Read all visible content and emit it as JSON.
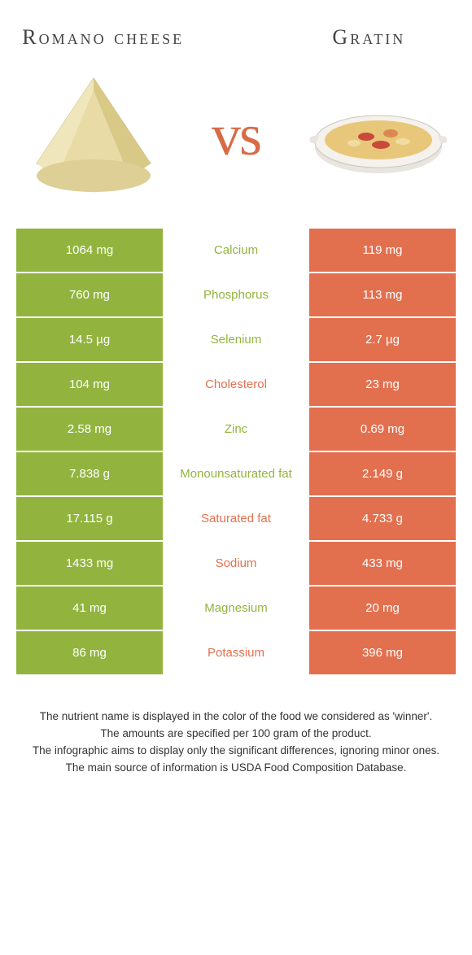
{
  "colors": {
    "green": "#92b43f",
    "orange": "#e2704f",
    "vs": "#d86b47",
    "title": "#444444",
    "footer_text": "#333333",
    "bg": "#ffffff"
  },
  "foods": {
    "left": {
      "name": "Romano cheese"
    },
    "right": {
      "name": "Gratin"
    }
  },
  "vs_label": "vs",
  "rows": [
    {
      "nutrient": "Calcium",
      "left": "1064 mg",
      "right": "119 mg",
      "winner": "left"
    },
    {
      "nutrient": "Phosphorus",
      "left": "760 mg",
      "right": "113 mg",
      "winner": "left"
    },
    {
      "nutrient": "Selenium",
      "left": "14.5 µg",
      "right": "2.7 µg",
      "winner": "left"
    },
    {
      "nutrient": "Cholesterol",
      "left": "104 mg",
      "right": "23 mg",
      "winner": "right"
    },
    {
      "nutrient": "Zinc",
      "left": "2.58 mg",
      "right": "0.69 mg",
      "winner": "left"
    },
    {
      "nutrient": "Monounsaturated fat",
      "left": "7.838 g",
      "right": "2.149 g",
      "winner": "left"
    },
    {
      "nutrient": "Saturated fat",
      "left": "17.115 g",
      "right": "4.733 g",
      "winner": "right"
    },
    {
      "nutrient": "Sodium",
      "left": "1433 mg",
      "right": "433 mg",
      "winner": "right"
    },
    {
      "nutrient": "Magnesium",
      "left": "41 mg",
      "right": "20 mg",
      "winner": "left"
    },
    {
      "nutrient": "Potassium",
      "left": "86 mg",
      "right": "396 mg",
      "winner": "right"
    }
  ],
  "footer": {
    "line1": "The nutrient name is displayed in the color of the food we considered as 'winner'.",
    "line2": "The amounts are specified per 100 gram of the product.",
    "line3": "The infographic aims to display only the significant differences, ignoring minor ones.",
    "line4": "The main source of information is USDA Food Composition Database."
  }
}
